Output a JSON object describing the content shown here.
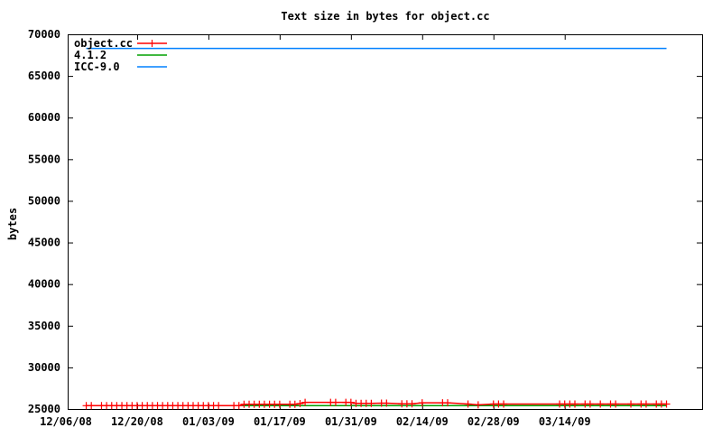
{
  "chart_data": {
    "type": "line",
    "title": "Text size in bytes for object.cc",
    "xlabel": "",
    "ylabel": "bytes",
    "xlim": [
      "12/06/08",
      "04/10/09"
    ],
    "ylim": [
      25000,
      70000
    ],
    "x_tick_labels": [
      "12/06/08",
      "12/20/08",
      "01/03/09",
      "01/17/09",
      "01/31/09",
      "02/14/09",
      "02/28/09",
      "03/14/09"
    ],
    "y_tick_labels": [
      "25000",
      "30000",
      "35000",
      "40000",
      "45000",
      "50000",
      "55000",
      "60000",
      "65000",
      "70000"
    ],
    "grid": false,
    "legend": "top-left",
    "series": [
      {
        "name": "object.cc",
        "color": "#ff0000",
        "style": "linespoints",
        "points": [
          [
            "12/10/08",
            25400
          ],
          [
            "12/11/08",
            25400
          ],
          [
            "12/13/08",
            25400
          ],
          [
            "12/14/08",
            25400
          ],
          [
            "12/15/08",
            25400
          ],
          [
            "12/16/08",
            25400
          ],
          [
            "12/17/08",
            25400
          ],
          [
            "12/18/08",
            25400
          ],
          [
            "12/19/08",
            25400
          ],
          [
            "12/20/08",
            25400
          ],
          [
            "12/21/08",
            25400
          ],
          [
            "12/22/08",
            25400
          ],
          [
            "12/23/08",
            25400
          ],
          [
            "12/24/08",
            25400
          ],
          [
            "12/25/08",
            25400
          ],
          [
            "12/26/08",
            25400
          ],
          [
            "12/27/08",
            25400
          ],
          [
            "12/28/08",
            25400
          ],
          [
            "12/29/08",
            25400
          ],
          [
            "12/30/08",
            25400
          ],
          [
            "12/31/08",
            25400
          ],
          [
            "01/01/09",
            25400
          ],
          [
            "01/02/09",
            25400
          ],
          [
            "01/03/09",
            25400
          ],
          [
            "01/04/09",
            25400
          ],
          [
            "01/05/09",
            25400
          ],
          [
            "01/08/09",
            25400
          ],
          [
            "01/09/09",
            25400
          ],
          [
            "01/10/09",
            25570
          ],
          [
            "01/11/09",
            25570
          ],
          [
            "01/12/09",
            25570
          ],
          [
            "01/13/09",
            25570
          ],
          [
            "01/14/09",
            25570
          ],
          [
            "01/15/09",
            25570
          ],
          [
            "01/16/09",
            25570
          ],
          [
            "01/17/09",
            25570
          ],
          [
            "01/19/09",
            25570
          ],
          [
            "01/20/09",
            25570
          ],
          [
            "01/21/09",
            25650
          ],
          [
            "01/22/09",
            25800
          ],
          [
            "01/27/09",
            25800
          ],
          [
            "01/28/09",
            25800
          ],
          [
            "01/30/09",
            25800
          ],
          [
            "01/31/09",
            25800
          ],
          [
            "02/01/09",
            25680
          ],
          [
            "02/02/09",
            25680
          ],
          [
            "02/03/09",
            25680
          ],
          [
            "02/04/09",
            25680
          ],
          [
            "02/06/09",
            25700
          ],
          [
            "02/07/09",
            25700
          ],
          [
            "02/10/09",
            25620
          ],
          [
            "02/11/09",
            25620
          ],
          [
            "02/12/09",
            25620
          ],
          [
            "02/14/09",
            25750
          ],
          [
            "02/18/09",
            25750
          ],
          [
            "02/19/09",
            25750
          ],
          [
            "02/23/09",
            25600
          ],
          [
            "02/25/09",
            25500
          ],
          [
            "02/28/09",
            25600
          ],
          [
            "03/01/09",
            25600
          ],
          [
            "03/02/09",
            25600
          ],
          [
            "03/13/09",
            25600
          ],
          [
            "03/14/09",
            25600
          ],
          [
            "03/15/09",
            25600
          ],
          [
            "03/16/09",
            25600
          ],
          [
            "03/18/09",
            25600
          ],
          [
            "03/19/09",
            25600
          ],
          [
            "03/21/09",
            25600
          ],
          [
            "03/23/09",
            25600
          ],
          [
            "03/24/09",
            25600
          ],
          [
            "03/27/09",
            25600
          ],
          [
            "03/29/09",
            25600
          ],
          [
            "03/30/09",
            25600
          ],
          [
            "04/01/09",
            25600
          ],
          [
            "04/02/09",
            25600
          ],
          [
            "04/03/09",
            25600
          ]
        ]
      },
      {
        "name": "4.1.2",
        "color": "#00a000",
        "style": "lines",
        "points": [
          [
            "12/10/08",
            25400
          ],
          [
            "04/03/09",
            25400
          ]
        ]
      },
      {
        "name": "ICC-9.0",
        "color": "#0080ff",
        "style": "lines",
        "points": [
          [
            "12/10/08",
            68300
          ],
          [
            "04/03/09",
            68300
          ]
        ]
      }
    ]
  }
}
